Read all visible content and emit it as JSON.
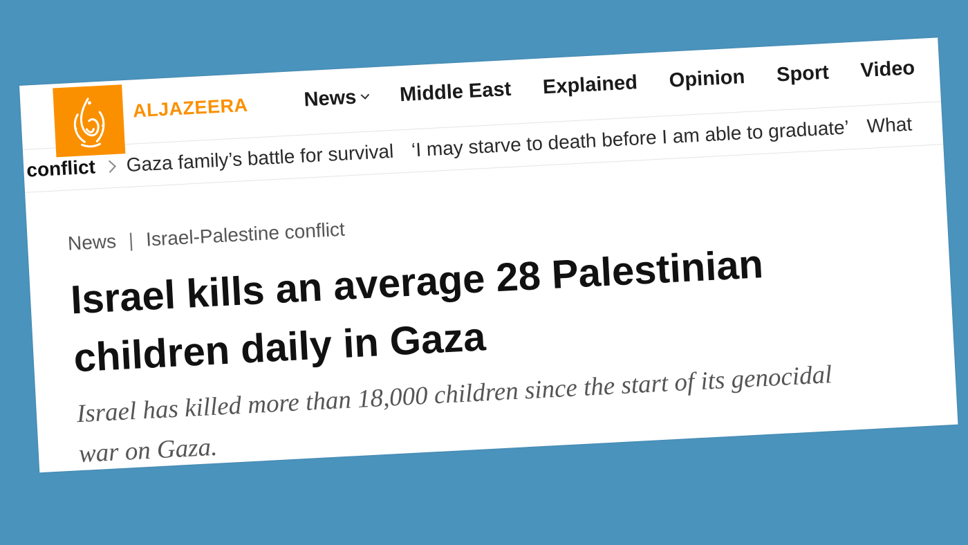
{
  "brand": {
    "name": "ALJAZEERA",
    "logo_icon": "aljazeera-calligraphy-icon",
    "accent_color": "#fa9000"
  },
  "nav": {
    "items": [
      {
        "label": "News"
      },
      {
        "label": "Middle East"
      },
      {
        "label": "Explained"
      },
      {
        "label": "Opinion"
      },
      {
        "label": "Sport"
      },
      {
        "label": "Video"
      }
    ]
  },
  "trending": {
    "label": "conflict",
    "items": [
      "Gaza family’s battle for survival",
      "‘I may starve to death before I am able to graduate’",
      "What"
    ]
  },
  "article": {
    "breadcrumb": {
      "section": "News",
      "separator": "|",
      "topic": "Israel-Palestine conflict"
    },
    "headline": "Israel kills an average 28 Palestinian children daily in Gaza",
    "standfirst": "Israel has killed more than 18,000 children since the start of its genocidal war on Gaza."
  },
  "background_color": "#4a93bd"
}
